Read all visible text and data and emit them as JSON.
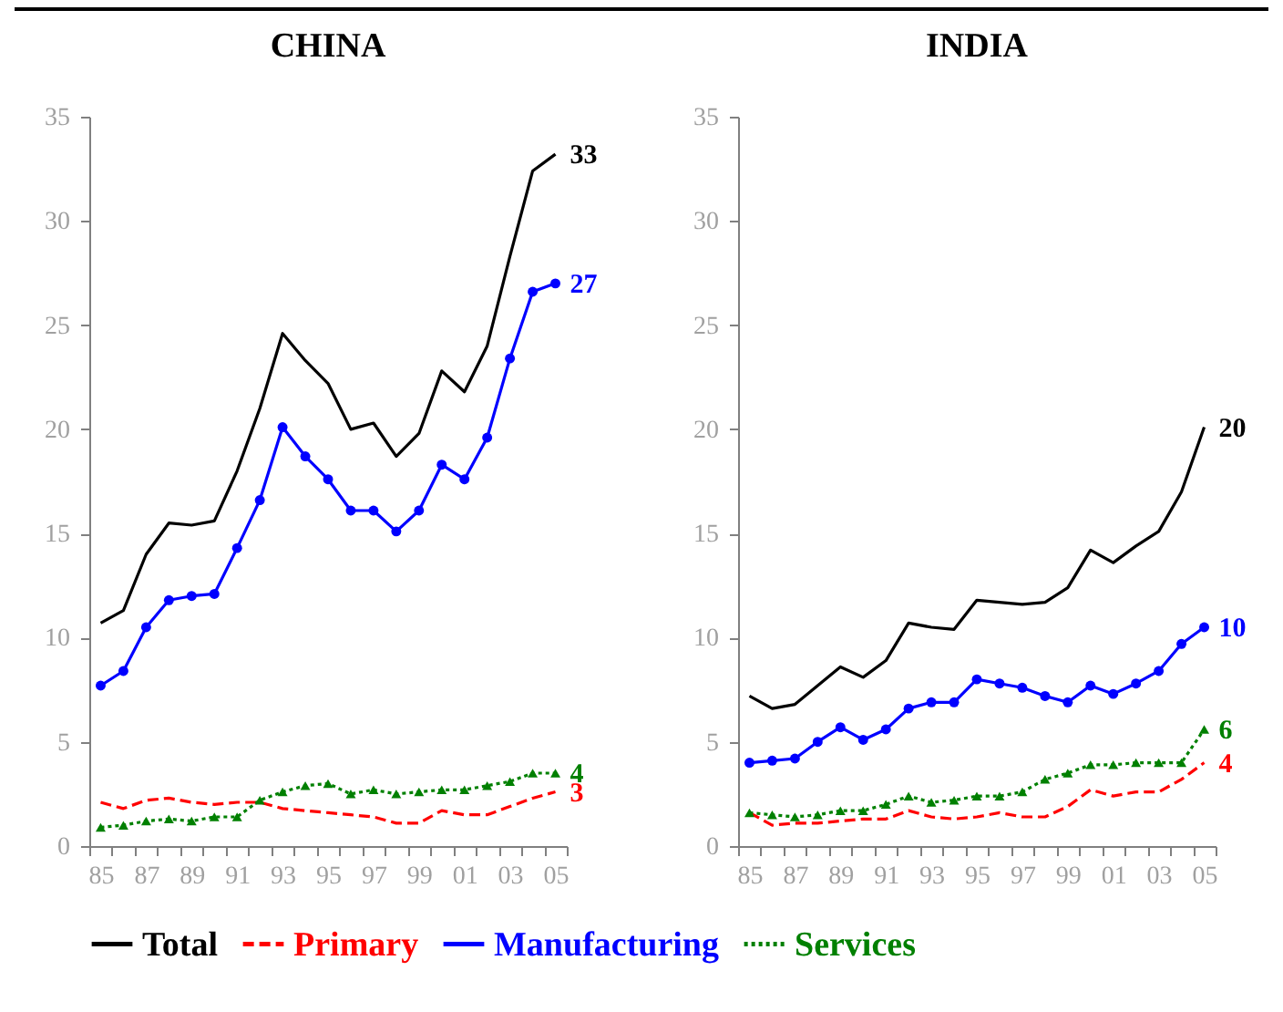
{
  "chart_data": [
    {
      "type": "line",
      "title": "CHINA",
      "categories": [
        "85",
        null,
        "87",
        null,
        "89",
        null,
        "91",
        null,
        "93",
        null,
        "95",
        null,
        "97",
        null,
        "99",
        null,
        "01",
        null,
        "03",
        null,
        "05"
      ],
      "ylim": [
        0,
        35
      ],
      "yticks": [
        0,
        5,
        10,
        15,
        20,
        25,
        30,
        35
      ],
      "grid": false,
      "legend": "bottom",
      "series": [
        {
          "name": "Total",
          "color": "#000000",
          "line_style": "solid",
          "marker": "none",
          "values": [
            10.7,
            11.3,
            14.0,
            15.5,
            15.4,
            15.6,
            18.0,
            21.0,
            24.6,
            23.3,
            22.2,
            20.0,
            20.3,
            18.7,
            19.8,
            22.8,
            21.8,
            24.0,
            28.3,
            32.4,
            33.2
          ],
          "value_labels": [
            null,
            null,
            null,
            null,
            null,
            null,
            null,
            null,
            null,
            null,
            null,
            null,
            null,
            null,
            null,
            null,
            null,
            null,
            null,
            null,
            "33"
          ]
        },
        {
          "name": "Primary",
          "color": "#ff0000",
          "line_style": "dashed",
          "marker": "none",
          "values": [
            2.1,
            1.8,
            2.2,
            2.3,
            2.1,
            2.0,
            2.1,
            2.1,
            1.8,
            1.7,
            1.6,
            1.5,
            1.4,
            1.1,
            1.1,
            1.7,
            1.5,
            1.5,
            1.9,
            2.3,
            2.6
          ],
          "value_labels": [
            null,
            null,
            null,
            null,
            null,
            null,
            null,
            null,
            null,
            null,
            null,
            null,
            null,
            null,
            null,
            null,
            null,
            null,
            null,
            null,
            "3"
          ]
        },
        {
          "name": "Manufacturing",
          "color": "#0000ff",
          "line_style": "solid",
          "marker": "circle",
          "values": [
            7.7,
            8.4,
            10.5,
            11.8,
            12.0,
            12.1,
            14.3,
            16.6,
            20.1,
            18.7,
            17.6,
            16.1,
            16.1,
            15.1,
            16.1,
            18.3,
            17.6,
            19.6,
            23.4,
            26.6,
            27.0
          ],
          "value_labels": [
            null,
            null,
            null,
            null,
            null,
            null,
            null,
            null,
            null,
            null,
            null,
            null,
            null,
            null,
            null,
            null,
            null,
            null,
            null,
            null,
            "27"
          ]
        },
        {
          "name": "Services",
          "color": "#008000",
          "line_style": "dotted",
          "marker": "triangle",
          "values": [
            0.9,
            1.0,
            1.2,
            1.3,
            1.2,
            1.4,
            1.4,
            2.2,
            2.6,
            2.9,
            3.0,
            2.5,
            2.7,
            2.5,
            2.6,
            2.7,
            2.7,
            2.9,
            3.1,
            3.5,
            3.5
          ],
          "value_labels": [
            null,
            null,
            null,
            null,
            null,
            null,
            null,
            null,
            null,
            null,
            null,
            null,
            null,
            null,
            null,
            null,
            null,
            null,
            null,
            null,
            "4"
          ]
        }
      ]
    },
    {
      "type": "line",
      "title": "INDIA",
      "categories": [
        "85",
        null,
        "87",
        null,
        "89",
        null,
        "91",
        null,
        "93",
        null,
        "95",
        null,
        "97",
        null,
        "99",
        null,
        "01",
        null,
        "03",
        null,
        "05"
      ],
      "ylim": [
        0,
        35
      ],
      "yticks": [
        0,
        5,
        10,
        15,
        20,
        25,
        30,
        35
      ],
      "grid": false,
      "series": [
        {
          "name": "Total",
          "color": "#000000",
          "line_style": "solid",
          "marker": "none",
          "values": [
            7.2,
            6.6,
            6.8,
            7.7,
            8.6,
            8.1,
            8.9,
            10.7,
            10.5,
            10.4,
            11.8,
            11.7,
            11.6,
            11.7,
            12.4,
            14.2,
            13.6,
            14.4,
            15.1,
            17.0,
            20.1
          ],
          "value_labels": [
            null,
            null,
            null,
            null,
            null,
            null,
            null,
            null,
            null,
            null,
            null,
            null,
            null,
            null,
            null,
            null,
            null,
            null,
            null,
            null,
            "20"
          ]
        },
        {
          "name": "Primary",
          "color": "#ff0000",
          "line_style": "dashed",
          "marker": "none",
          "values": [
            1.6,
            1.0,
            1.1,
            1.1,
            1.2,
            1.3,
            1.3,
            1.7,
            1.4,
            1.3,
            1.4,
            1.6,
            1.4,
            1.4,
            1.9,
            2.7,
            2.4,
            2.6,
            2.6,
            3.2,
            4.0
          ],
          "value_labels": [
            null,
            null,
            null,
            null,
            null,
            null,
            null,
            null,
            null,
            null,
            null,
            null,
            null,
            null,
            null,
            null,
            null,
            null,
            null,
            null,
            "4"
          ]
        },
        {
          "name": "Manufacturing",
          "color": "#0000ff",
          "line_style": "solid",
          "marker": "circle",
          "values": [
            4.0,
            4.1,
            4.2,
            5.0,
            5.7,
            5.1,
            5.6,
            6.6,
            6.9,
            6.9,
            8.0,
            7.8,
            7.6,
            7.2,
            6.9,
            7.7,
            7.3,
            7.8,
            8.4,
            9.7,
            10.5
          ],
          "value_labels": [
            null,
            null,
            null,
            null,
            null,
            null,
            null,
            null,
            null,
            null,
            null,
            null,
            null,
            null,
            null,
            null,
            null,
            null,
            null,
            null,
            "10"
          ]
        },
        {
          "name": "Services",
          "color": "#008000",
          "line_style": "dotted",
          "marker": "triangle",
          "values": [
            1.6,
            1.5,
            1.4,
            1.5,
            1.7,
            1.7,
            2.0,
            2.4,
            2.1,
            2.2,
            2.4,
            2.4,
            2.6,
            3.2,
            3.5,
            3.9,
            3.9,
            4.0,
            4.0,
            4.0,
            5.6
          ],
          "value_labels": [
            null,
            null,
            null,
            null,
            null,
            null,
            null,
            null,
            null,
            null,
            null,
            null,
            null,
            null,
            null,
            null,
            null,
            null,
            null,
            null,
            "6"
          ]
        }
      ]
    }
  ]
}
